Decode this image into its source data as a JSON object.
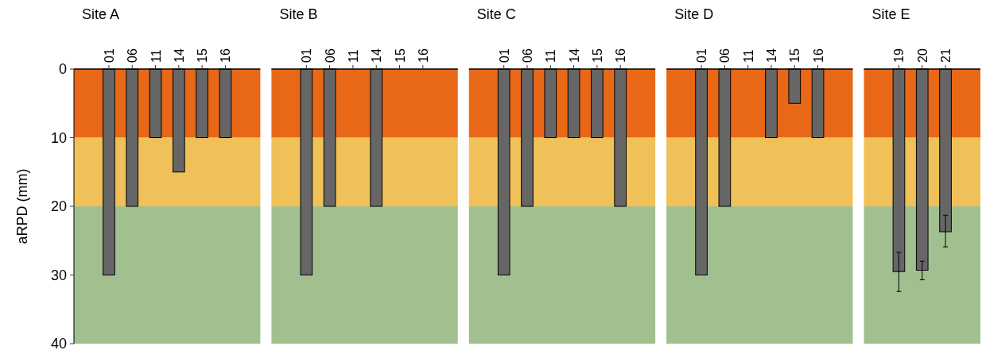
{
  "chart_data": [
    {
      "type": "bar",
      "title": "Site A",
      "ylabel": "aRPD (mm)",
      "categories": [
        "01",
        "06",
        "11",
        "14",
        "15",
        "16"
      ],
      "values": [
        30,
        20,
        10,
        15,
        10,
        10
      ],
      "color": "#666666",
      "ylim": [
        40,
        0
      ],
      "yticks": [
        0,
        10,
        20,
        30,
        40
      ],
      "bands": [
        {
          "axis": "y",
          "from": 0,
          "to": 10,
          "color": "#e86818"
        },
        {
          "axis": "y",
          "from": 10,
          "to": 20,
          "color": "#f0c158"
        },
        {
          "axis": "y",
          "from": 20,
          "to": 40,
          "color": "#a2c08f"
        }
      ]
    },
    {
      "type": "bar",
      "title": "Site B",
      "categories": [
        "01",
        "06",
        "11",
        "14",
        "15",
        "16"
      ],
      "values": [
        30,
        20,
        null,
        20,
        null,
        null
      ],
      "color": "#666666",
      "ylim": [
        40,
        0
      ],
      "tick_labels": "x",
      "bands": [
        {
          "axis": "y",
          "from": 0,
          "to": 10,
          "color": "#e86818"
        },
        {
          "axis": "y",
          "from": 10,
          "to": 20,
          "color": "#f0c158"
        },
        {
          "axis": "y",
          "from": 20,
          "to": 40,
          "color": "#a2c08f"
        }
      ]
    },
    {
      "type": "bar",
      "title": "Site C",
      "categories": [
        "01",
        "06",
        "11",
        "14",
        "15",
        "16"
      ],
      "values": [
        30,
        20,
        10,
        10,
        10,
        20
      ],
      "color": "#666666",
      "ylim": [
        40,
        0
      ],
      "tick_labels": "x",
      "bands": [
        {
          "axis": "y",
          "from": 0,
          "to": 10,
          "color": "#e86818"
        },
        {
          "axis": "y",
          "from": 10,
          "to": 20,
          "color": "#f0c158"
        },
        {
          "axis": "y",
          "from": 20,
          "to": 40,
          "color": "#a2c08f"
        }
      ]
    },
    {
      "type": "bar",
      "title": "Site D",
      "categories": [
        "01",
        "06",
        "11",
        "14",
        "15",
        "16"
      ],
      "values": [
        30,
        20,
        null,
        10,
        5,
        10
      ],
      "color": "#666666",
      "ylim": [
        40,
        0
      ],
      "tick_labels": "x",
      "bands": [
        {
          "axis": "y",
          "from": 0,
          "to": 10,
          "color": "#e86818"
        },
        {
          "axis": "y",
          "from": 10,
          "to": 20,
          "color": "#f0c158"
        },
        {
          "axis": "y",
          "from": 20,
          "to": 40,
          "color": "#a2c08f"
        }
      ]
    },
    {
      "type": "bar",
      "title": "Site E",
      "categories": [
        "19",
        "20",
        "21"
      ],
      "values": [
        29.5,
        29.3,
        23.7
      ],
      "errors": [
        [
          26.7,
          32.4
        ],
        [
          28.0,
          30.7
        ],
        [
          21.3,
          25.9
        ]
      ],
      "color": "#666666",
      "ylim": [
        40,
        0
      ],
      "tick_labels": "x",
      "bands": [
        {
          "axis": "y",
          "from": 0,
          "to": 10,
          "color": "#e86818"
        },
        {
          "axis": "y",
          "from": 10,
          "to": 20,
          "color": "#f0c158"
        },
        {
          "axis": "y",
          "from": 20,
          "to": 40,
          "color": "#a2c08f"
        }
      ]
    }
  ]
}
